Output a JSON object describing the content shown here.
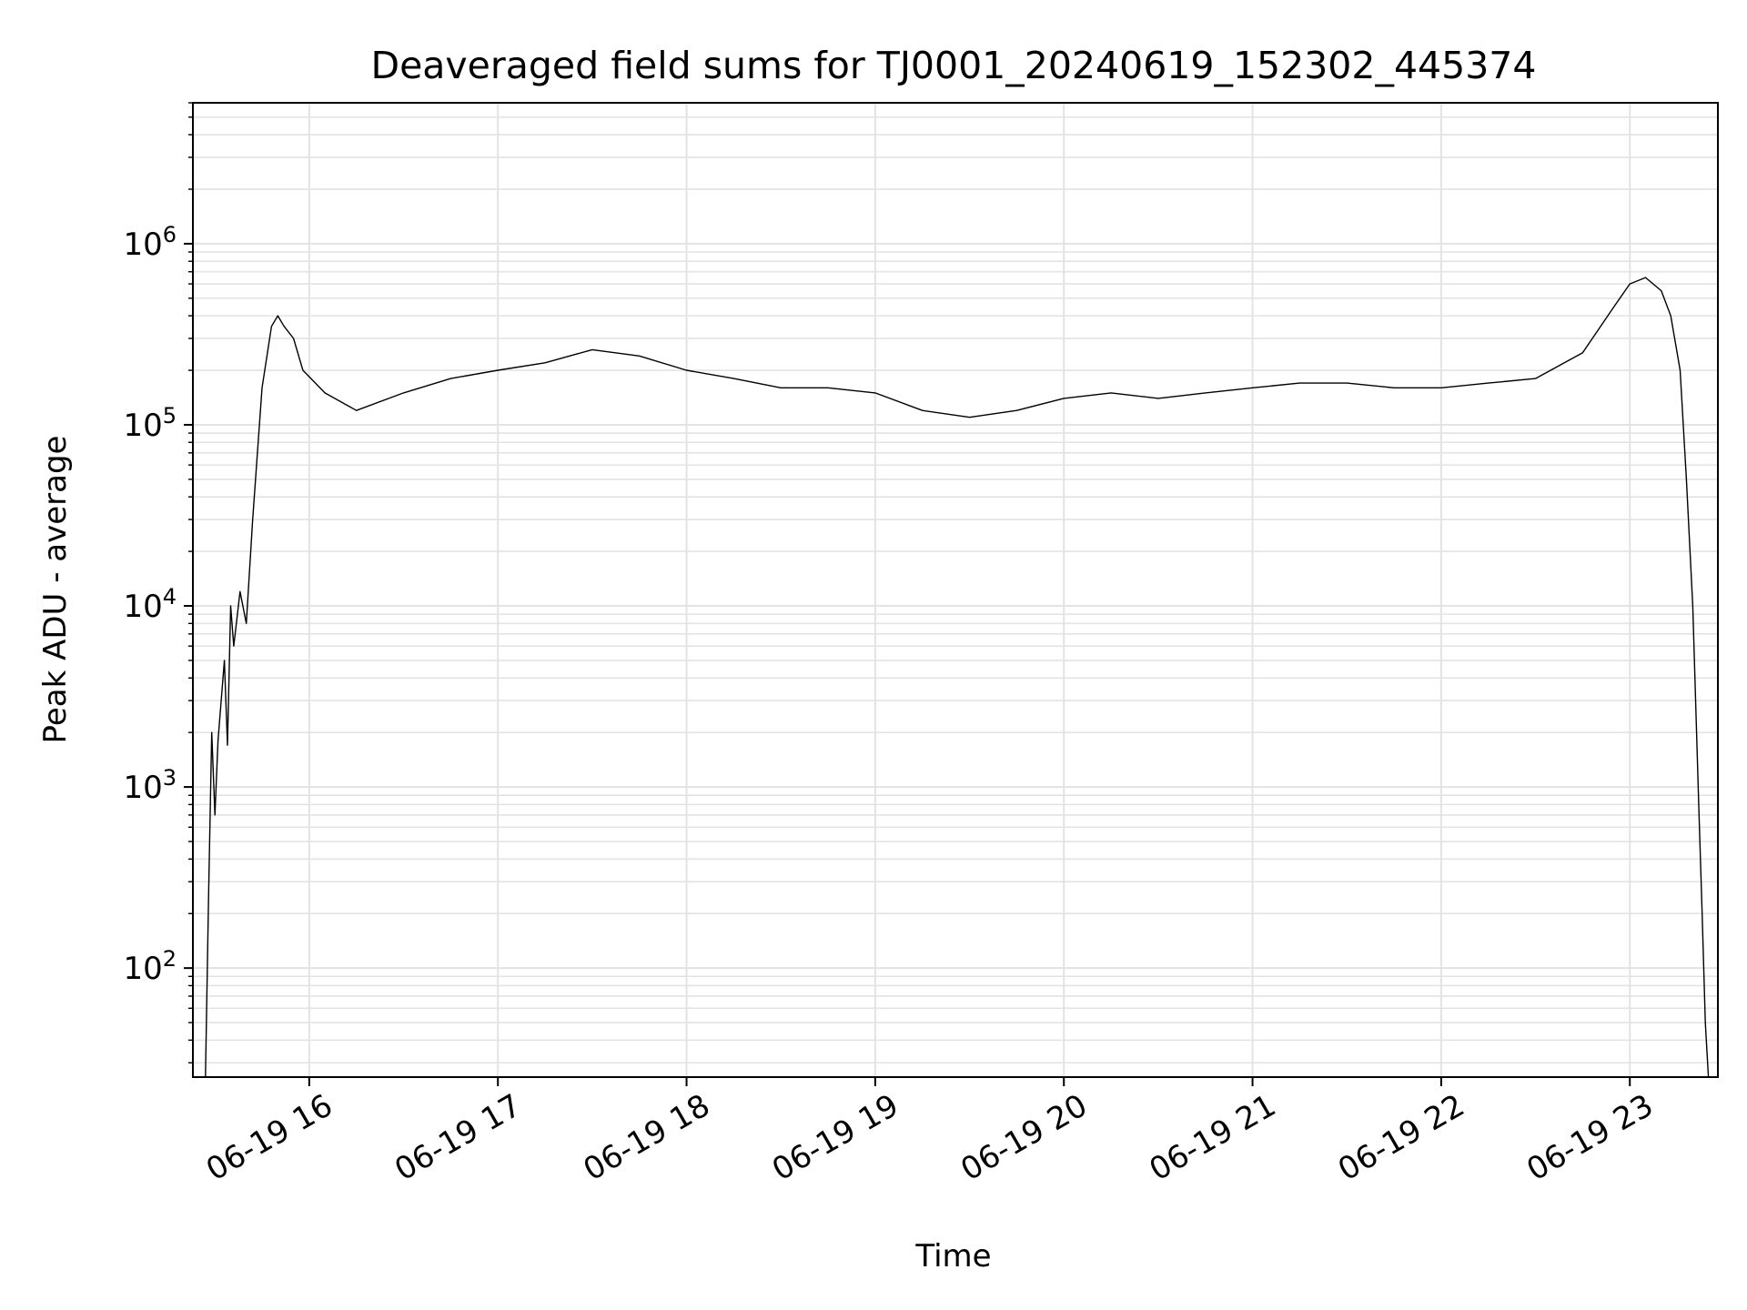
{
  "chart_data": {
    "type": "line",
    "title": "Deaveraged field sums for TJ0001_20240619_152302_445374",
    "xlabel": "Time",
    "ylabel": "Peak ADU - average",
    "yscale": "log",
    "xlim": [
      "2024-06-19 15:23",
      "2024-06-19 23:28"
    ],
    "ylim": [
      25,
      6000000
    ],
    "grid": true,
    "line_color": "#000000",
    "x_ticks": [
      {
        "value": "2024-06-19 16:00",
        "label": "06-19 16"
      },
      {
        "value": "2024-06-19 17:00",
        "label": "06-19 17"
      },
      {
        "value": "2024-06-19 18:00",
        "label": "06-19 18"
      },
      {
        "value": "2024-06-19 19:00",
        "label": "06-19 19"
      },
      {
        "value": "2024-06-19 20:00",
        "label": "06-19 20"
      },
      {
        "value": "2024-06-19 21:00",
        "label": "06-19 21"
      },
      {
        "value": "2024-06-19 22:00",
        "label": "06-19 22"
      },
      {
        "value": "2024-06-19 23:00",
        "label": "06-19 23"
      }
    ],
    "y_ticks": [
      {
        "value": 100,
        "base": "10",
        "exp": "2"
      },
      {
        "value": 1000,
        "base": "10",
        "exp": "3"
      },
      {
        "value": 10000,
        "base": "10",
        "exp": "4"
      },
      {
        "value": 100000,
        "base": "10",
        "exp": "5"
      },
      {
        "value": 1000000,
        "base": "10",
        "exp": "6"
      }
    ],
    "series": [
      {
        "x": [
          "2024-06-19 15:27",
          "2024-06-19 15:28",
          "2024-06-19 15:29",
          "2024-06-19 15:30",
          "2024-06-19 15:31",
          "2024-06-19 15:32",
          "2024-06-19 15:33",
          "2024-06-19 15:34",
          "2024-06-19 15:35",
          "2024-06-19 15:36",
          "2024-06-19 15:38",
          "2024-06-19 15:40",
          "2024-06-19 15:42",
          "2024-06-19 15:45",
          "2024-06-19 15:48",
          "2024-06-19 15:50",
          "2024-06-19 15:52",
          "2024-06-19 15:55",
          "2024-06-19 15:58",
          "2024-06-19 16:05",
          "2024-06-19 16:15",
          "2024-06-19 16:30",
          "2024-06-19 16:45",
          "2024-06-19 17:00",
          "2024-06-19 17:15",
          "2024-06-19 17:30",
          "2024-06-19 17:45",
          "2024-06-19 18:00",
          "2024-06-19 18:15",
          "2024-06-19 18:30",
          "2024-06-19 18:45",
          "2024-06-19 19:00",
          "2024-06-19 19:15",
          "2024-06-19 19:30",
          "2024-06-19 19:45",
          "2024-06-19 20:00",
          "2024-06-19 20:15",
          "2024-06-19 20:30",
          "2024-06-19 20:45",
          "2024-06-19 21:00",
          "2024-06-19 21:15",
          "2024-06-19 21:30",
          "2024-06-19 21:45",
          "2024-06-19 22:00",
          "2024-06-19 22:15",
          "2024-06-19 22:30",
          "2024-06-19 22:45",
          "2024-06-19 22:55",
          "2024-06-19 23:00",
          "2024-06-19 23:05",
          "2024-06-19 23:10",
          "2024-06-19 23:13",
          "2024-06-19 23:16",
          "2024-06-19 23:18",
          "2024-06-19 23:20",
          "2024-06-19 23:22",
          "2024-06-19 23:23",
          "2024-06-19 23:24",
          "2024-06-19 23:25"
        ],
        "y": [
          25,
          260,
          2000,
          700,
          1800,
          3000,
          5000,
          1700,
          10000,
          6000,
          12000,
          8000,
          30000,
          160000,
          350000,
          400000,
          350000,
          300000,
          200000,
          150000,
          120000,
          150000,
          180000,
          200000,
          220000,
          260000,
          240000,
          200000,
          180000,
          160000,
          160000,
          150000,
          120000,
          110000,
          120000,
          140000,
          150000,
          140000,
          150000,
          160000,
          170000,
          170000,
          160000,
          160000,
          170000,
          180000,
          250000,
          450000,
          600000,
          650000,
          550000,
          400000,
          200000,
          50000,
          10000,
          700,
          200,
          50,
          25
        ]
      }
    ]
  }
}
